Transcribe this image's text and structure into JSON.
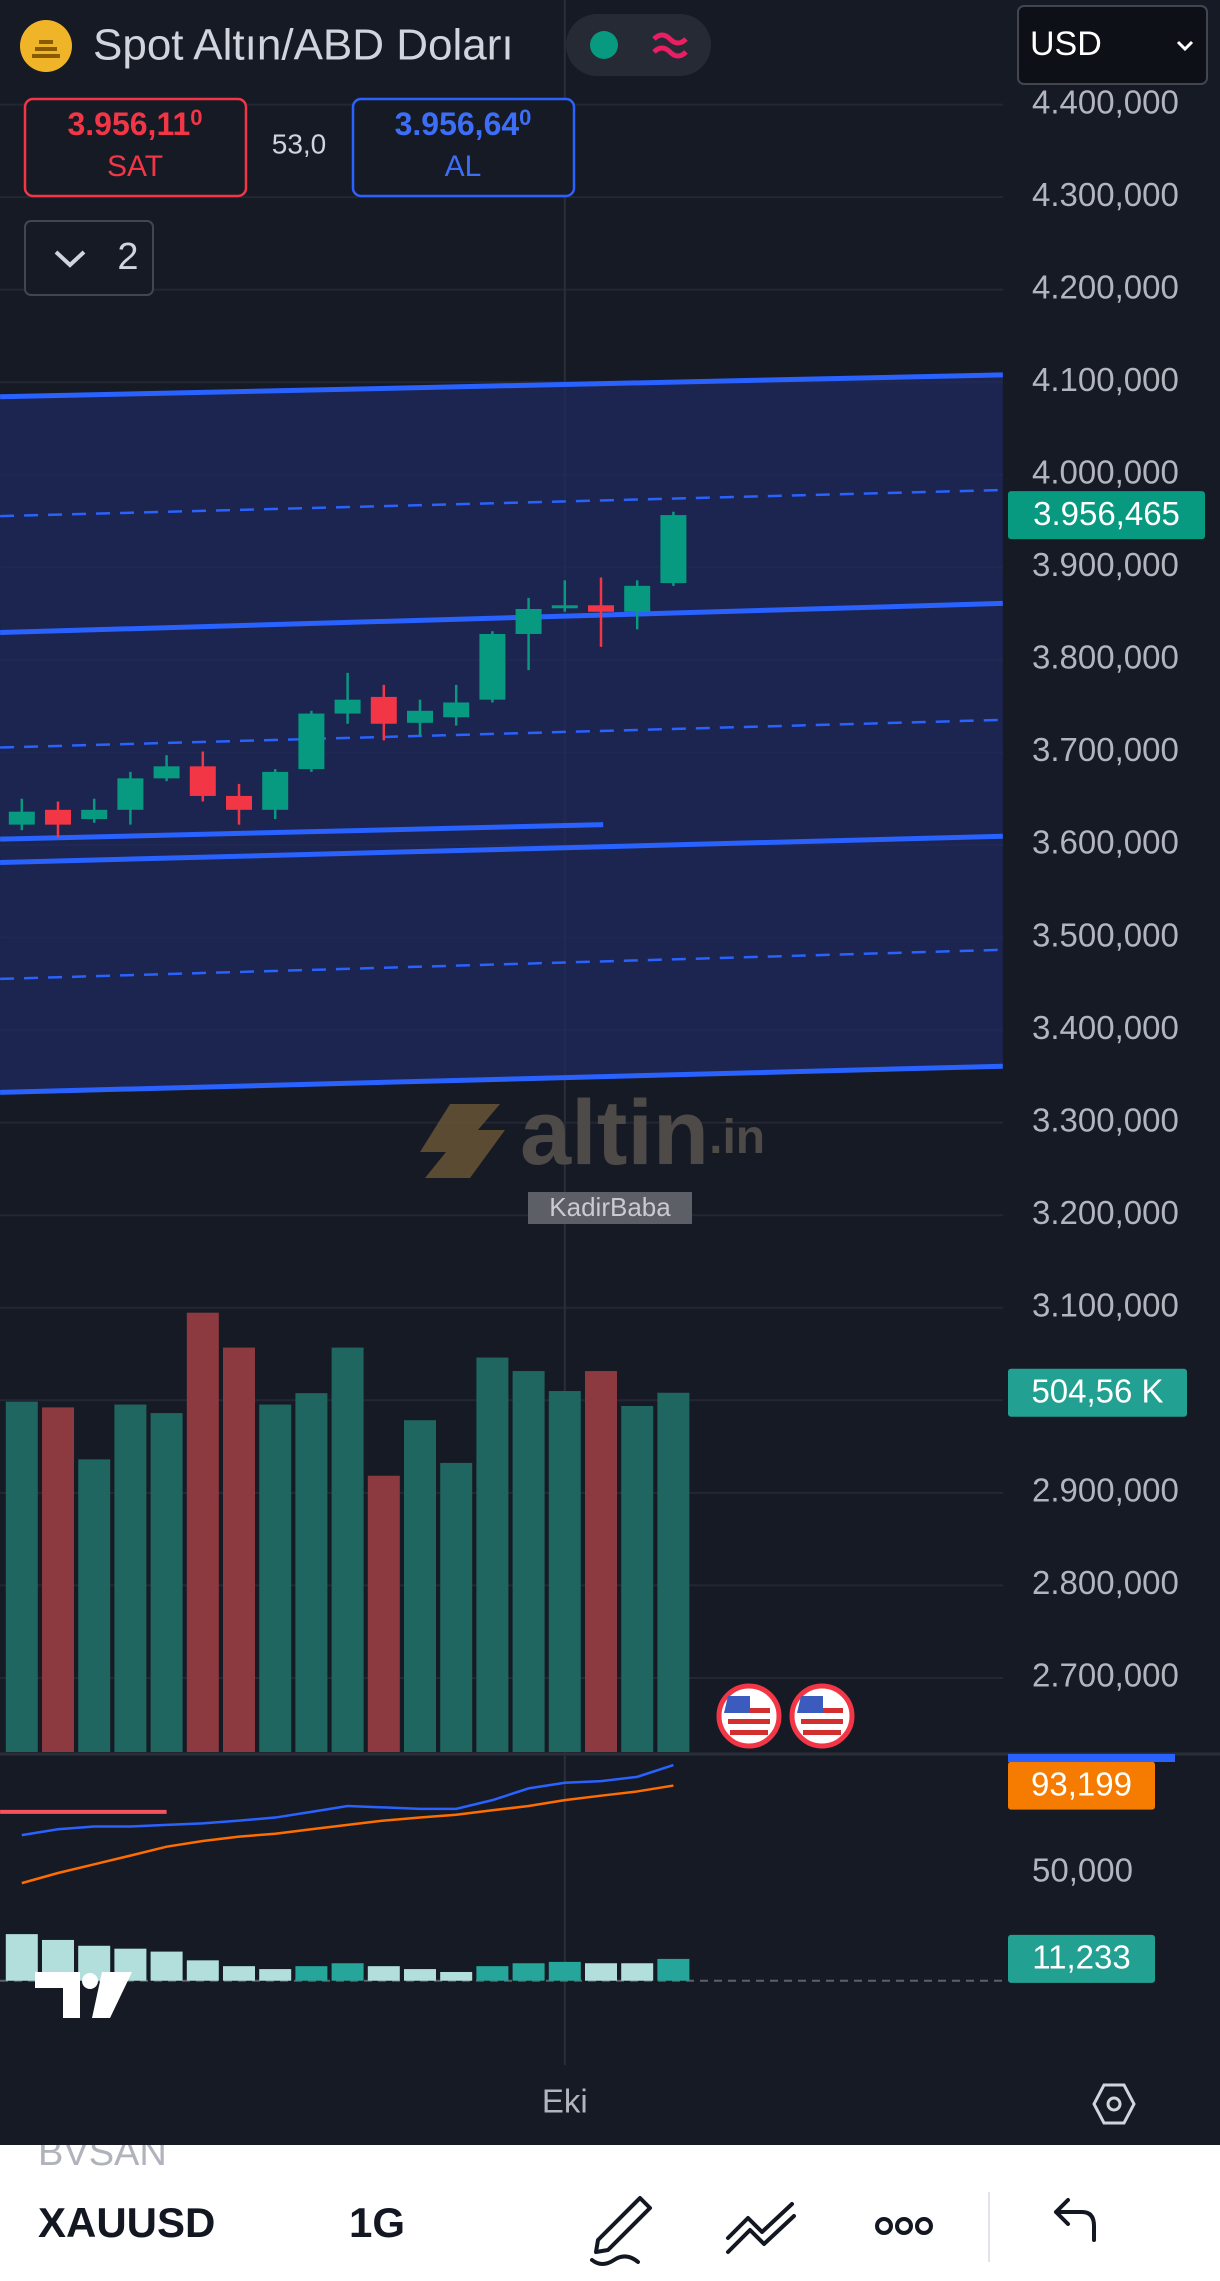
{
  "header": {
    "symbol_name": "Spot Altın/ABD Doları",
    "currency": "USD",
    "sell_price": "3.956,11",
    "sell_price_sup": "0",
    "sell_label": "SAT",
    "spread": "53,0",
    "buy_price": "3.956,64",
    "buy_price_sup": "0",
    "buy_label": "AL",
    "indicator_count": "2"
  },
  "watermark": {
    "brand": "altin",
    "brand_suffix": ".in",
    "user": "KadirBaba"
  },
  "chart_data": {
    "type": "candlestick",
    "categories": [
      null,
      null,
      null,
      null,
      null,
      null,
      null,
      null,
      null,
      null,
      null,
      null,
      null,
      null,
      null,
      "Eki",
      null,
      null,
      null
    ],
    "open": [
      3622,
      3638,
      3628,
      3638,
      3672,
      3685,
      3653,
      3638,
      3682,
      3742,
      3760,
      3732,
      3738,
      3757,
      3828,
      3856,
      3859,
      3852,
      3883
    ],
    "high": [
      3650,
      3647,
      3650,
      3679,
      3697,
      3701,
      3666,
      3682,
      3745,
      3786,
      3773,
      3757,
      3773,
      3831,
      3867,
      3886,
      3889,
      3886,
      3960
    ],
    "low": [
      3616,
      3608,
      3624,
      3622,
      3669,
      3647,
      3622,
      3628,
      3679,
      3731,
      3713,
      3718,
      3729,
      3754,
      3789,
      3852,
      3814,
      3833,
      3880
    ],
    "close": [
      3636,
      3622,
      3638,
      3672,
      3685,
      3653,
      3638,
      3679,
      3742,
      3757,
      3731,
      3745,
      3754,
      3828,
      3855,
      3859,
      3852,
      3880,
      3956.465
    ],
    "up_color": "#089981",
    "down_color": "#f23645",
    "ylim": [
      2620,
      4513
    ],
    "yticks": [
      {
        "value": 4400,
        "label": "4.400,000"
      },
      {
        "value": 4300,
        "label": "4.300,000"
      },
      {
        "value": 4200,
        "label": "4.200,000"
      },
      {
        "value": 4100,
        "label": "4.100,000"
      },
      {
        "value": 4000,
        "label": "4.000,000"
      },
      {
        "value": 3900,
        "label": "3.900,000"
      },
      {
        "value": 3800,
        "label": "3.800,000"
      },
      {
        "value": 3700,
        "label": "3.700,000"
      },
      {
        "value": 3600,
        "label": "3.600,000"
      },
      {
        "value": 3500,
        "label": "3.500,000"
      },
      {
        "value": 3400,
        "label": "3.400,000"
      },
      {
        "value": 3300,
        "label": "3.300,000"
      },
      {
        "value": 3200,
        "label": "3.200,000"
      },
      {
        "value": 3100,
        "label": "3.100,000"
      },
      {
        "value": 3000,
        "label": "3.000,000"
      },
      {
        "value": 2900,
        "label": "2.900,000"
      },
      {
        "value": 2800,
        "label": "2.800,000"
      },
      {
        "value": 2700,
        "label": "2.700,000"
      }
    ],
    "grid": true,
    "last_price": {
      "value": 3956.465,
      "label": "3.956,465",
      "color": "#089981"
    },
    "channel_color": "#2962ff",
    "channel_fill": "#1d2a5e",
    "channel_lines": [
      {
        "x": [
          -0.6,
          27.1
        ],
        "y": [
          4084.3,
          4107.9
        ],
        "style": "solid"
      },
      {
        "x": [
          -0.6,
          27.1
        ],
        "y": [
          3955.3,
          3983.6
        ],
        "style": "dashed"
      },
      {
        "x": [
          -0.6,
          27.1
        ],
        "y": [
          3829.6,
          3861.0
        ],
        "style": "solid"
      },
      {
        "x": [
          -0.6,
          27.1
        ],
        "y": [
          3705.3,
          3735.2
        ],
        "style": "dashed"
      },
      {
        "x": [
          -0.6,
          27.1
        ],
        "y": [
          3581.1,
          3609.4
        ],
        "style": "solid"
      },
      {
        "x": [
          -0.6,
          27.1
        ],
        "y": [
          3455.3,
          3486.8
        ],
        "style": "dashed"
      },
      {
        "x": [
          -0.6,
          27.1
        ],
        "y": [
          3332.7,
          3361.0
        ],
        "style": "solid"
      },
      {
        "x": [
          -0.6,
          16.06
        ],
        "y": [
          3606.3,
          3622.0
        ],
        "style": "solid"
      }
    ],
    "volume": {
      "values": [
        492,
        484,
        411,
        488,
        476,
        617,
        568,
        488,
        504,
        568,
        388,
        466,
        406,
        554,
        535,
        507,
        535,
        486,
        504.56
      ],
      "ylim": [
        0,
        1000
      ],
      "up_color": "#1f6660",
      "down_color": "#8c3a3f",
      "last_label": {
        "value": 504.56,
        "label": "504,56 K",
        "color": "#22a092"
      }
    },
    "indicator": {
      "ylim": [
        34.2,
        108.3
      ],
      "yticks": [
        {
          "value": 50,
          "label": "50,000"
        }
      ],
      "series": [
        {
          "color": "#2962ff",
          "values": [
            68.7,
            71.6,
            73,
            73,
            73.8,
            74.5,
            75.9,
            77.4,
            80.2,
            83.1,
            82.4,
            81.7,
            81.7,
            86,
            91.8,
            94.6,
            95.4,
            97.5,
            103.3
          ]
        },
        {
          "color": "#ff6d00",
          "values": [
            45,
            50,
            54.3,
            58.6,
            63,
            65.8,
            68,
            69.4,
            71.6,
            73.8,
            75.9,
            77.4,
            78.8,
            81,
            83.1,
            86,
            88.2,
            90.3,
            93.199
          ]
        }
      ],
      "level": {
        "value": 80.2,
        "x": [
          -0.6,
          4
        ],
        "color": "#f7525f"
      },
      "last_label": {
        "value": 93.199,
        "label": "93,199",
        "color": "#f57c00"
      }
    },
    "histogram": {
      "values": [
        24,
        21,
        18,
        16.5,
        15,
        10.5,
        7.5,
        6,
        7.5,
        9,
        7.5,
        6,
        4.5,
        7.5,
        9,
        9.7,
        9,
        9,
        11.233
      ],
      "ylim": [
        -43.4,
        39
      ],
      "rising_color": "#26a69a",
      "falling_color": "#b2dfdb",
      "last_label": {
        "value": 11.233,
        "label": "11,233",
        "color": "#22a092"
      }
    }
  },
  "toolbar": {
    "watchlist_prev": "BVSAN",
    "symbol": "XAUUSD",
    "interval": "1G"
  }
}
